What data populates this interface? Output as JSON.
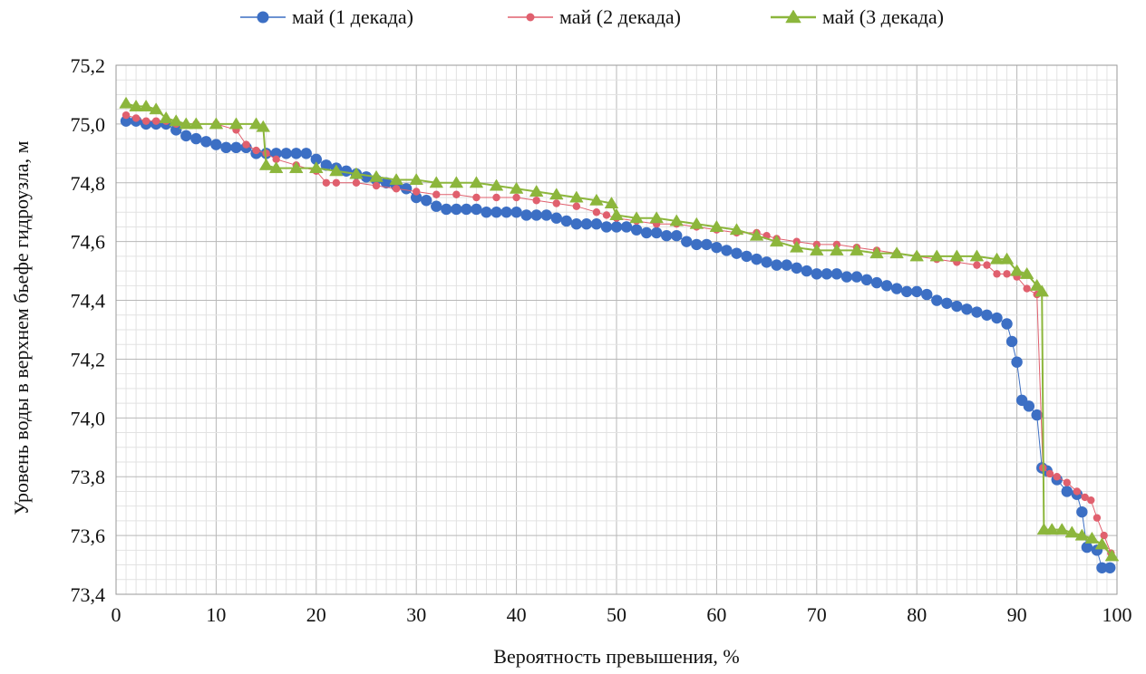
{
  "chart_data": {
    "type": "line",
    "title": "",
    "xlabel": "Вероятность превышения, %",
    "ylabel": "Уровень воды  в верхнем бьефе гидроузла, м",
    "xlim": [
      0,
      100
    ],
    "ylim": [
      73.4,
      75.2
    ],
    "xticks": [
      "0",
      "10",
      "20",
      "30",
      "40",
      "50",
      "60",
      "70",
      "80",
      "90",
      "100"
    ],
    "yticks": [
      "73,4",
      "73,6",
      "73,8",
      "74,0",
      "74,2",
      "74,4",
      "74,6",
      "74,8",
      "75,0",
      "75,2"
    ],
    "grid": true,
    "legend_position": "top",
    "series": [
      {
        "name": "май (1 декада)",
        "color": "#3c6fc4",
        "marker": "circle",
        "points": [
          [
            1,
            75.01
          ],
          [
            2,
            75.01
          ],
          [
            3,
            75.0
          ],
          [
            4,
            75.0
          ],
          [
            5,
            75.0
          ],
          [
            6,
            74.98
          ],
          [
            7,
            74.96
          ],
          [
            8,
            74.95
          ],
          [
            9,
            74.94
          ],
          [
            10,
            74.93
          ],
          [
            11,
            74.92
          ],
          [
            12,
            74.92
          ],
          [
            13,
            74.92
          ],
          [
            14,
            74.9
          ],
          [
            15,
            74.9
          ],
          [
            16,
            74.9
          ],
          [
            17,
            74.9
          ],
          [
            18,
            74.9
          ],
          [
            19,
            74.9
          ],
          [
            20,
            74.88
          ],
          [
            21,
            74.86
          ],
          [
            22,
            74.85
          ],
          [
            23,
            74.84
          ],
          [
            24,
            74.83
          ],
          [
            25,
            74.82
          ],
          [
            26,
            74.81
          ],
          [
            27,
            74.8
          ],
          [
            28,
            74.79
          ],
          [
            29,
            74.78
          ],
          [
            30,
            74.75
          ],
          [
            31,
            74.74
          ],
          [
            32,
            74.72
          ],
          [
            33,
            74.71
          ],
          [
            34,
            74.71
          ],
          [
            35,
            74.71
          ],
          [
            36,
            74.71
          ],
          [
            37,
            74.7
          ],
          [
            38,
            74.7
          ],
          [
            39,
            74.7
          ],
          [
            40,
            74.7
          ],
          [
            41,
            74.69
          ],
          [
            42,
            74.69
          ],
          [
            43,
            74.69
          ],
          [
            44,
            74.68
          ],
          [
            45,
            74.67
          ],
          [
            46,
            74.66
          ],
          [
            47,
            74.66
          ],
          [
            48,
            74.66
          ],
          [
            49,
            74.65
          ],
          [
            50,
            74.65
          ],
          [
            51,
            74.65
          ],
          [
            52,
            74.64
          ],
          [
            53,
            74.63
          ],
          [
            54,
            74.63
          ],
          [
            55,
            74.62
          ],
          [
            56,
            74.62
          ],
          [
            57,
            74.6
          ],
          [
            58,
            74.59
          ],
          [
            59,
            74.59
          ],
          [
            60,
            74.58
          ],
          [
            61,
            74.57
          ],
          [
            62,
            74.56
          ],
          [
            63,
            74.55
          ],
          [
            64,
            74.54
          ],
          [
            65,
            74.53
          ],
          [
            66,
            74.52
          ],
          [
            67,
            74.52
          ],
          [
            68,
            74.51
          ],
          [
            69,
            74.5
          ],
          [
            70,
            74.49
          ],
          [
            71,
            74.49
          ],
          [
            72,
            74.49
          ],
          [
            73,
            74.48
          ],
          [
            74,
            74.48
          ],
          [
            75,
            74.47
          ],
          [
            76,
            74.46
          ],
          [
            77,
            74.45
          ],
          [
            78,
            74.44
          ],
          [
            79,
            74.43
          ],
          [
            80,
            74.43
          ],
          [
            81,
            74.42
          ],
          [
            82,
            74.4
          ],
          [
            83,
            74.39
          ],
          [
            84,
            74.38
          ],
          [
            85,
            74.37
          ],
          [
            86,
            74.36
          ],
          [
            87,
            74.35
          ],
          [
            88,
            74.34
          ],
          [
            89,
            74.32
          ],
          [
            89.5,
            74.26
          ],
          [
            90,
            74.19
          ],
          [
            90.5,
            74.06
          ],
          [
            91.2,
            74.04
          ],
          [
            92,
            74.01
          ],
          [
            92.5,
            73.83
          ],
          [
            93,
            73.82
          ],
          [
            94,
            73.79
          ],
          [
            95,
            73.75
          ],
          [
            96,
            73.74
          ],
          [
            96.5,
            73.68
          ],
          [
            97,
            73.56
          ],
          [
            98,
            73.55
          ],
          [
            98.5,
            73.49
          ],
          [
            99.3,
            73.49
          ]
        ]
      },
      {
        "name": "май (2 декада)",
        "color": "#e0606e",
        "marker": "circle",
        "points": [
          [
            1,
            75.03
          ],
          [
            2,
            75.02
          ],
          [
            3,
            75.01
          ],
          [
            4,
            75.01
          ],
          [
            5,
            75.01
          ],
          [
            6,
            75.0
          ],
          [
            8,
            75.0
          ],
          [
            10,
            75.0
          ],
          [
            12,
            74.98
          ],
          [
            13,
            74.93
          ],
          [
            14,
            74.91
          ],
          [
            15,
            74.9
          ],
          [
            16,
            74.88
          ],
          [
            18,
            74.86
          ],
          [
            20,
            74.84
          ],
          [
            21,
            74.8
          ],
          [
            22,
            74.8
          ],
          [
            24,
            74.8
          ],
          [
            26,
            74.79
          ],
          [
            28,
            74.78
          ],
          [
            30,
            74.77
          ],
          [
            32,
            74.76
          ],
          [
            34,
            74.76
          ],
          [
            36,
            74.75
          ],
          [
            38,
            74.75
          ],
          [
            40,
            74.75
          ],
          [
            42,
            74.74
          ],
          [
            44,
            74.73
          ],
          [
            46,
            74.72
          ],
          [
            48,
            74.7
          ],
          [
            49,
            74.69
          ],
          [
            50,
            74.68
          ],
          [
            52,
            74.67
          ],
          [
            54,
            74.66
          ],
          [
            56,
            74.66
          ],
          [
            58,
            74.65
          ],
          [
            60,
            74.64
          ],
          [
            62,
            74.63
          ],
          [
            64,
            74.63
          ],
          [
            65,
            74.62
          ],
          [
            66,
            74.61
          ],
          [
            68,
            74.6
          ],
          [
            70,
            74.59
          ],
          [
            72,
            74.59
          ],
          [
            74,
            74.58
          ],
          [
            76,
            74.57
          ],
          [
            78,
            74.56
          ],
          [
            80,
            74.55
          ],
          [
            82,
            74.54
          ],
          [
            84,
            74.53
          ],
          [
            86,
            74.52
          ],
          [
            87,
            74.52
          ],
          [
            88,
            74.49
          ],
          [
            89,
            74.49
          ],
          [
            90,
            74.48
          ],
          [
            91,
            74.44
          ],
          [
            92,
            74.42
          ],
          [
            92.6,
            73.83
          ],
          [
            93.3,
            73.81
          ],
          [
            94,
            73.8
          ],
          [
            95,
            73.78
          ],
          [
            96,
            73.75
          ],
          [
            96.8,
            73.73
          ],
          [
            97.4,
            73.72
          ],
          [
            98,
            73.66
          ],
          [
            98.7,
            73.6
          ],
          [
            99.4,
            73.54
          ]
        ]
      },
      {
        "name": "май (3 декада)",
        "color": "#8cb63c",
        "marker": "triangle",
        "points": [
          [
            1,
            75.07
          ],
          [
            2,
            75.06
          ],
          [
            3,
            75.06
          ],
          [
            4,
            75.05
          ],
          [
            5,
            75.02
          ],
          [
            6,
            75.01
          ],
          [
            7,
            75.0
          ],
          [
            8,
            75.0
          ],
          [
            10,
            75.0
          ],
          [
            12,
            75.0
          ],
          [
            14,
            75.0
          ],
          [
            14.7,
            74.99
          ],
          [
            15,
            74.86
          ],
          [
            16,
            74.85
          ],
          [
            18,
            74.85
          ],
          [
            20,
            74.85
          ],
          [
            22,
            74.84
          ],
          [
            24,
            74.83
          ],
          [
            26,
            74.82
          ],
          [
            28,
            74.81
          ],
          [
            30,
            74.81
          ],
          [
            32,
            74.8
          ],
          [
            34,
            74.8
          ],
          [
            36,
            74.8
          ],
          [
            38,
            74.79
          ],
          [
            40,
            74.78
          ],
          [
            42,
            74.77
          ],
          [
            44,
            74.76
          ],
          [
            46,
            74.75
          ],
          [
            48,
            74.74
          ],
          [
            49.5,
            74.73
          ],
          [
            50,
            74.69
          ],
          [
            52,
            74.68
          ],
          [
            54,
            74.68
          ],
          [
            56,
            74.67
          ],
          [
            58,
            74.66
          ],
          [
            60,
            74.65
          ],
          [
            62,
            74.64
          ],
          [
            64,
            74.62
          ],
          [
            66,
            74.6
          ],
          [
            68,
            74.58
          ],
          [
            70,
            74.57
          ],
          [
            72,
            74.57
          ],
          [
            74,
            74.57
          ],
          [
            76,
            74.56
          ],
          [
            78,
            74.56
          ],
          [
            80,
            74.55
          ],
          [
            82,
            74.55
          ],
          [
            84,
            74.55
          ],
          [
            86,
            74.55
          ],
          [
            88,
            74.54
          ],
          [
            89,
            74.54
          ],
          [
            90,
            74.5
          ],
          [
            91,
            74.49
          ],
          [
            92,
            74.45
          ],
          [
            92.5,
            74.43
          ],
          [
            92.7,
            73.62
          ],
          [
            93.5,
            73.62
          ],
          [
            94.5,
            73.62
          ],
          [
            95.5,
            73.61
          ],
          [
            96.5,
            73.6
          ],
          [
            97.5,
            73.59
          ],
          [
            98.5,
            73.57
          ],
          [
            99.5,
            73.53
          ]
        ]
      }
    ]
  }
}
